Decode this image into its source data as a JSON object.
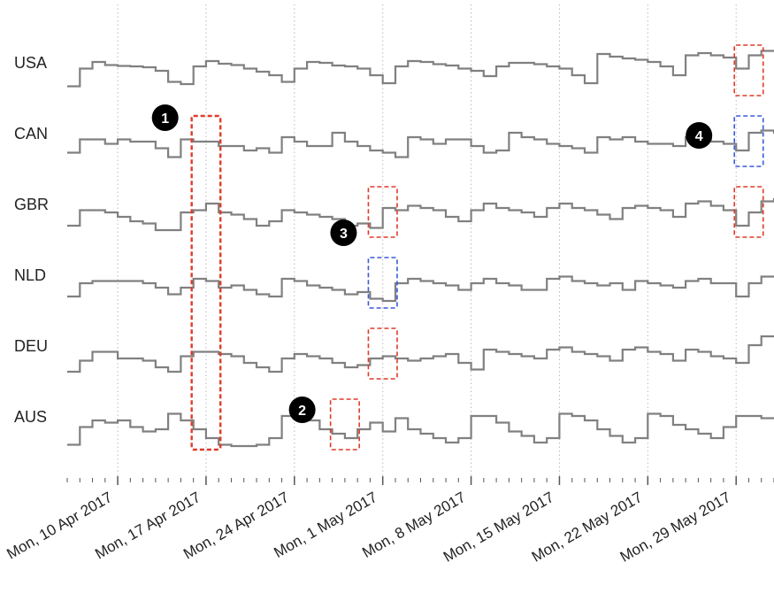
{
  "chart_data": {
    "type": "line",
    "step": true,
    "title": "",
    "xlabel": "",
    "ylabel": "",
    "x_range": [
      "2017-04-06",
      "2017-06-01"
    ],
    "x_ticks": [
      "2017-04-10",
      "2017-04-17",
      "2017-04-24",
      "2017-05-01",
      "2017-05-08",
      "2017-05-15",
      "2017-05-22",
      "2017-05-29"
    ],
    "x_tick_labels": [
      "Mon, 10 Apr 2017",
      "Mon, 17 Apr 2017",
      "Mon, 24 Apr 2017",
      "Mon, 1 May 2017",
      "Mon, 8 May 2017",
      "Mon, 15 May 2017",
      "Mon, 22 May 2017",
      "Mon, 29 May 2017"
    ],
    "grid": "vertical dotted at weekly ticks",
    "y_scale": "relative (each row normalized 0-1)",
    "colors": {
      "line": "#808080",
      "highlight_red": "#e03a2a",
      "highlight_blue": "#3a5ad8",
      "grid": "#bbbbbb",
      "marker_bg": "#000000"
    },
    "series": [
      {
        "name": "USA",
        "x_start": "2017-04-06",
        "values": [
          0.15,
          0.55,
          0.7,
          0.63,
          0.61,
          0.6,
          0.58,
          0.5,
          0.25,
          0.2,
          0.6,
          0.72,
          0.66,
          0.63,
          0.55,
          0.48,
          0.4,
          0.25,
          0.55,
          0.7,
          0.68,
          0.62,
          0.6,
          0.55,
          0.4,
          0.22,
          0.6,
          0.72,
          0.7,
          0.65,
          0.62,
          0.55,
          0.5,
          0.38,
          0.6,
          0.68,
          0.68,
          0.65,
          0.6,
          0.55,
          0.4,
          0.22,
          0.88,
          0.82,
          0.78,
          0.75,
          0.7,
          0.6,
          0.4,
          0.85,
          0.9,
          0.85,
          0.8,
          0.55,
          0.85,
          0.95,
          0.95
        ]
      },
      {
        "name": "CAN",
        "x_start": "2017-04-06",
        "values": [
          0.25,
          0.55,
          0.55,
          0.45,
          0.55,
          0.5,
          0.5,
          0.35,
          0.15,
          0.55,
          0.5,
          0.5,
          0.4,
          0.4,
          0.3,
          0.35,
          0.25,
          0.6,
          0.5,
          0.4,
          0.4,
          0.7,
          0.5,
          0.4,
          0.3,
          0.25,
          0.15,
          0.6,
          0.55,
          0.45,
          0.55,
          0.55,
          0.4,
          0.25,
          0.3,
          0.7,
          0.6,
          0.55,
          0.45,
          0.4,
          0.35,
          0.25,
          0.6,
          0.55,
          0.6,
          0.5,
          0.45,
          0.45,
          0.4,
          0.6,
          0.55,
          0.5,
          0.45,
          0.3,
          0.7,
          0.75,
          0.7
        ]
      },
      {
        "name": "GBR",
        "x_start": "2017-04-06",
        "values": [
          0.2,
          0.55,
          0.55,
          0.5,
          0.4,
          0.3,
          0.25,
          0.1,
          0.1,
          0.5,
          0.55,
          0.7,
          0.5,
          0.45,
          0.35,
          0.2,
          0.3,
          0.55,
          0.5,
          0.45,
          0.4,
          0.35,
          0.2,
          0.25,
          0.15,
          0.6,
          0.55,
          0.65,
          0.6,
          0.55,
          0.4,
          0.3,
          0.55,
          0.7,
          0.6,
          0.55,
          0.5,
          0.4,
          0.6,
          0.7,
          0.6,
          0.55,
          0.45,
          0.35,
          0.6,
          0.65,
          0.6,
          0.55,
          0.4,
          0.7,
          0.75,
          0.65,
          0.55,
          0.2,
          0.5,
          0.75,
          0.8
        ]
      },
      {
        "name": "NLD",
        "x_start": "2017-04-06",
        "values": [
          0.2,
          0.5,
          0.55,
          0.55,
          0.55,
          0.55,
          0.5,
          0.4,
          0.25,
          0.4,
          0.6,
          0.55,
          0.4,
          0.45,
          0.35,
          0.25,
          0.2,
          0.6,
          0.55,
          0.45,
          0.4,
          0.35,
          0.25,
          0.3,
          0.15,
          0.1,
          0.5,
          0.6,
          0.55,
          0.5,
          0.45,
          0.35,
          0.5,
          0.6,
          0.5,
          0.45,
          0.35,
          0.35,
          0.6,
          0.65,
          0.55,
          0.5,
          0.45,
          0.5,
          0.35,
          0.55,
          0.5,
          0.45,
          0.4,
          0.55,
          0.6,
          0.5,
          0.5,
          0.2,
          0.5,
          0.65,
          0.65
        ]
      },
      {
        "name": "DEU",
        "x_start": "2017-04-06",
        "values": [
          0.1,
          0.35,
          0.55,
          0.55,
          0.4,
          0.4,
          0.35,
          0.2,
          0.1,
          0.45,
          0.55,
          0.55,
          0.5,
          0.45,
          0.3,
          0.2,
          0.1,
          0.4,
          0.5,
          0.45,
          0.4,
          0.3,
          0.2,
          0.25,
          0.4,
          0.45,
          0.4,
          0.35,
          0.4,
          0.45,
          0.5,
          0.3,
          0.15,
          0.6,
          0.55,
          0.5,
          0.45,
          0.4,
          0.6,
          0.65,
          0.55,
          0.5,
          0.45,
          0.35,
          0.6,
          0.65,
          0.55,
          0.5,
          0.35,
          0.6,
          0.55,
          0.45,
          0.4,
          0.3,
          0.7,
          0.9,
          0.9
        ]
      },
      {
        "name": "AUS",
        "x_start": "2017-04-06",
        "values": [
          0.05,
          0.45,
          0.6,
          0.55,
          0.6,
          0.45,
          0.35,
          0.4,
          0.75,
          0.6,
          0.4,
          0.2,
          0.05,
          0.02,
          0.02,
          0.05,
          0.2,
          0.7,
          0.65,
          0.6,
          0.4,
          0.3,
          0.2,
          0.4,
          0.55,
          0.35,
          0.65,
          0.4,
          0.3,
          0.2,
          0.1,
          0.2,
          0.7,
          0.7,
          0.55,
          0.35,
          0.25,
          0.1,
          0.2,
          0.75,
          0.7,
          0.6,
          0.4,
          0.25,
          0.1,
          0.2,
          0.75,
          0.7,
          0.5,
          0.4,
          0.3,
          0.2,
          0.45,
          0.7,
          0.7,
          0.65,
          0.65
        ]
      }
    ],
    "annotations": [
      {
        "label": "1",
        "color": "red",
        "style": "dashed",
        "date_start": "2017-04-16",
        "date_end": "2017-04-18",
        "rows": [
          "CAN",
          "GBR",
          "NLD",
          "DEU",
          "AUS"
        ]
      },
      {
        "label": "2",
        "color": "red",
        "style": "dashed",
        "date_start": "2017-04-27",
        "date_end": "2017-04-29",
        "rows": [
          "AUS"
        ]
      },
      {
        "label": "3",
        "color": "blue",
        "style": "dashed",
        "date_start": "2017-04-30",
        "date_end": "2017-05-02",
        "rows": [
          "NLD"
        ]
      },
      {
        "label": "",
        "color": "red",
        "style": "dashed",
        "date_start": "2017-04-30",
        "date_end": "2017-05-02",
        "rows": [
          "GBR",
          "DEU"
        ]
      },
      {
        "label": "4",
        "color": "blue",
        "style": "dashed",
        "date_start": "2017-05-29",
        "date_end": "2017-05-31",
        "rows": [
          "CAN"
        ]
      },
      {
        "label": "",
        "color": "red",
        "style": "dashed",
        "date_start": "2017-05-29",
        "date_end": "2017-05-31",
        "rows": [
          "USA",
          "GBR"
        ]
      }
    ]
  }
}
